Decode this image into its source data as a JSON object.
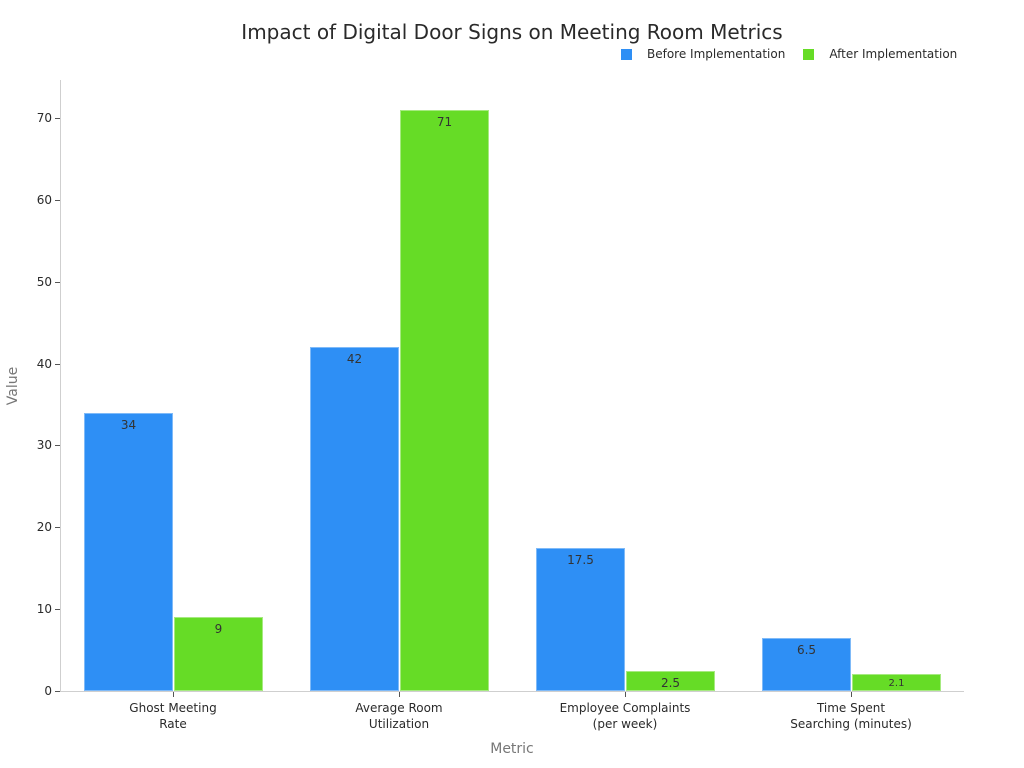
{
  "chart_data": {
    "type": "bar",
    "title": "Impact of Digital Door Signs on Meeting Room Metrics",
    "xlabel": "Metric",
    "ylabel": "Value",
    "categories": [
      "Ghost Meeting\nRate",
      "Average Room\nUtilization",
      "Employee Complaints\n(per week)",
      "Time Spent\nSearching (minutes)"
    ],
    "series": [
      {
        "name": "Before Implementation",
        "color": "#2e8ff5",
        "values": [
          34,
          42,
          17.5,
          6.5
        ],
        "labels": [
          "34",
          "42",
          "17.5",
          "6.5"
        ]
      },
      {
        "name": "After Implementation",
        "color": "#66dc26",
        "values": [
          9,
          71,
          2.5,
          2.1
        ],
        "labels": [
          "9",
          "71",
          "2.5",
          "2.1"
        ]
      }
    ],
    "ylim": [
      0,
      74.6
    ],
    "yticks": [
      0,
      10,
      20,
      30,
      40,
      50,
      60,
      70
    ],
    "grid": false,
    "legend_position": "top-right"
  },
  "title": "Impact of Digital Door Signs on Meeting Room Metrics",
  "legend": {
    "before": "Before Implementation",
    "after": "After Implementation"
  },
  "axes": {
    "xlabel": "Metric",
    "ylabel": "Value",
    "yticks": [
      "0",
      "10",
      "20",
      "30",
      "40",
      "50",
      "60",
      "70"
    ]
  },
  "categories": {
    "c0": "Ghost Meeting\nRate",
    "c1": "Average Room\nUtilization",
    "c2": "Employee Complaints\n(per week)",
    "c3": "Time Spent\nSearching (minutes)"
  }
}
